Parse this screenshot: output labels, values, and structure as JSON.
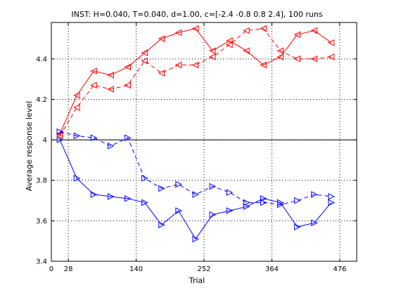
{
  "chart_data": {
    "type": "line",
    "title": "INST: H=0.040, T=0.040, d=1.00, c=[-2.4 -0.8 0.8 2.4], 100 runs",
    "xlabel": "Trial",
    "ylabel": "Average response level",
    "xlim": [
      0,
      504
    ],
    "ylim": [
      3.4,
      4.58
    ],
    "xticks": [
      0,
      28,
      140,
      252,
      364,
      476
    ],
    "yticks": [
      3.4,
      3.6,
      3.8,
      4,
      4.2,
      4.4
    ],
    "ytick_labels": [
      "3.4",
      "3.6",
      "3.8",
      "4",
      "4.2",
      "4.4"
    ],
    "grid": true,
    "reference_line": 4.0,
    "x": [
      14,
      42,
      70,
      98,
      126,
      154,
      182,
      210,
      238,
      266,
      294,
      322,
      350,
      378,
      406,
      434,
      462
    ],
    "series": [
      {
        "color": "#ff0000",
        "line_style": "solid",
        "marker": "left-triangle",
        "values": [
          4.03,
          4.22,
          4.34,
          4.32,
          4.36,
          4.43,
          4.5,
          4.53,
          4.55,
          4.44,
          4.49,
          4.44,
          4.37,
          4.41,
          4.52,
          4.54,
          4.48
        ]
      },
      {
        "color": "#ff0000",
        "line_style": "dashed",
        "marker": "left-triangle",
        "values": [
          4.02,
          4.16,
          4.27,
          4.25,
          4.27,
          4.39,
          4.33,
          4.37,
          4.37,
          4.41,
          4.47,
          4.54,
          4.55,
          4.44,
          4.4,
          4.4,
          4.41
        ]
      },
      {
        "color": "#0000ff",
        "line_style": "solid",
        "marker": "right-triangle",
        "values": [
          4.0,
          3.81,
          3.73,
          3.72,
          3.71,
          3.69,
          3.58,
          3.65,
          3.51,
          3.63,
          3.65,
          3.67,
          3.71,
          3.69,
          3.57,
          3.59,
          3.69
        ]
      },
      {
        "color": "#0000ff",
        "line_style": "dashed",
        "marker": "right-triangle",
        "values": [
          4.04,
          4.02,
          4.01,
          3.97,
          4.01,
          3.81,
          3.76,
          3.78,
          3.73,
          3.77,
          3.74,
          3.69,
          3.69,
          3.68,
          3.7,
          3.73,
          3.72
        ]
      }
    ]
  }
}
